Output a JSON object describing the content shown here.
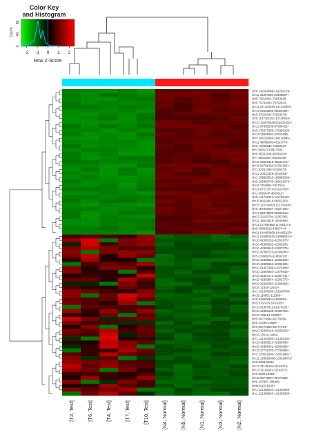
{
  "chart_data": {
    "type": "heatmap",
    "color_key": {
      "title_line1": "Color Key",
      "title_line2": "and Histogram",
      "xlabel": "Row Z-Score",
      "ylabel": "Count",
      "x_ticks": [
        "-2",
        "-1",
        "0",
        "1",
        "2"
      ],
      "y_ticks": [
        "0",
        "40",
        "80"
      ],
      "range": [
        -2.5,
        2.5
      ],
      "colors": {
        "low": "#00ff00",
        "mid": "#000000",
        "high": "#ff0000"
      }
    },
    "col_side_colors": [
      "#00e5ff",
      "#ff1a1a"
    ],
    "columns": [
      "[T2, Test]",
      "[T6, Test]",
      "[T4, Test]",
      "[T7, Test]",
      "[T10, Test]",
      "[N4, Normal]",
      "[N5, Normal]",
      "[N1, Normal]",
      "[N3, Normal]",
      "[N2, Normal]"
    ],
    "column_groups": [
      "Test",
      "Test",
      "Test",
      "Test",
      "Test",
      "Normal",
      "Normal",
      "Normal",
      "Normal",
      "Normal"
    ],
    "rows": [
      "chr8 142264088-142264729-",
      "chr11 33307959-33308057+",
      "chr5 73016061-73043538-",
      "chr5 79734833-79752843-",
      "chr11 137220946-137224004-",
      "chr14 66028855-66028484+",
      "chr5 37623044-37623673+",
      "chr5 113740135-113740553+",
      "chr10 116876649-116931092+",
      "chr12 97958239-97958425+",
      "chr5 176373336-176385103-",
      "chr13 33691894-33101669-",
      "chr3 196119684-196120899-",
      "chr11 46096505-46113774-",
      "chr2 72945232-72960247-",
      "chr1 8601273-8617582-",
      "chr5 95091109-95099324+",
      "chr7 86223827-86226365-",
      "chr15 45603318-45631676+",
      "chr15 64791450-64792365+",
      "chr1 32261496-32265233-",
      "chr22 20022329-20026837-",
      "chr1 168826010-168986268-",
      "chr5 105380740-105161076+",
      "chr16 7318654-7327916-",
      "chr19 87217074-87220708+",
      "chr1 4681647-4863613+",
      "chr8 141748117-141792410-",
      "chr15 96624618-96652150-",
      "chr15 113734053-113735838-",
      "chr6 157930087-76327483+",
      "chr17 86078508-86384519+",
      "chr17 22130794-22357666-",
      "chr12 15543618-15548993-",
      "chr11 117944808-117963271+",
      "chr5 40893613-40897444-",
      "chr11 144460969-144465120+",
      "chr11 129893340-139866824+",
      "chr10 42386152-42391876+",
      "chr10 42385562-42396206-",
      "chr10 42385610-42387075+",
      "chr10 42386710-42395696+",
      "chr5 61969974-61969313+",
      "chr10 42385521-42396165+",
      "chr10 42385562-42396206+",
      "chr10 61967398-61970488+",
      "chr10 13484653-13478646+",
      "chr10 42387271-42387741+",
      "chr10 42383544-42392775+",
      "chr10 42382303-42386909+",
      "chr16 12348-12534+",
      "chr1 101598030-101598708-",
      "chr16 110601-111360+",
      "chr5 61968835-61969591+",
      "chr5 5787475-5791029+",
      "chr10 61967811-61974235+",
      "chr10 42385168-42390758+",
      "chr10 138613-139057+",
      "chr5 58774884-58778380-",
      "chr8 14338-14669+",
      "chr5 58773980-58777294+",
      "chr10 42385146-42385529+",
      "chr16 13519-14482-",
      "chr1 121484504-121485182-",
      "chr10 42385613-42386909+",
      "chr10 42386461-42386909+",
      "chr13 27732201-27733889+",
      "chr2 133029366-133029892+",
      "chr12 133029306-133029972+",
      "chr8 5298-6066+",
      "chr17 31149448-31149716-",
      "chr17 31149431-31149707-",
      "chr6 8530-10659+",
      "chr16 58779207-58779283-",
      "chr6 107987-108489-",
      "chrM 5303-8630+",
      "chr1 121485020-121485358-",
      "chr1 121485020-121485359+"
    ]
  }
}
